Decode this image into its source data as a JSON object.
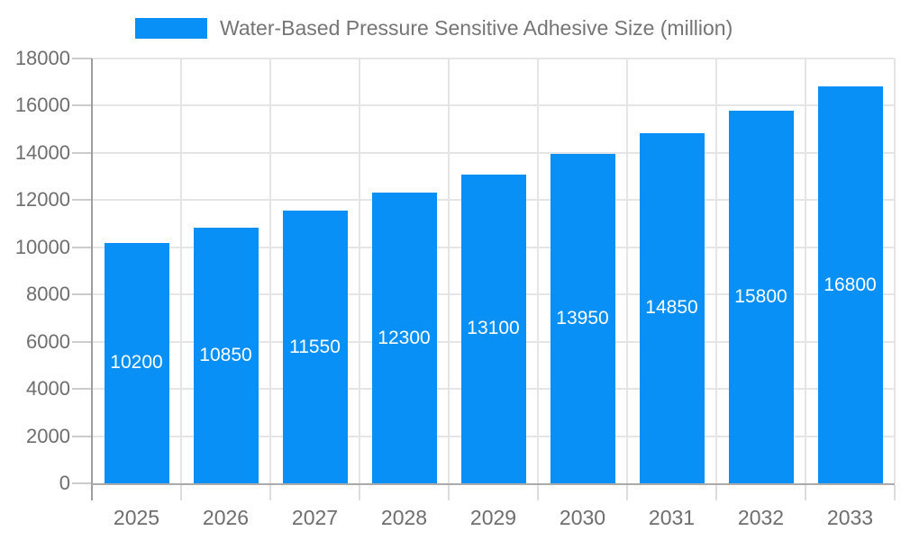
{
  "chart_data": {
    "type": "bar",
    "title": "Water-Based Pressure Sensitive Adhesive Size (million)",
    "categories": [
      "2025",
      "2026",
      "2027",
      "2028",
      "2029",
      "2030",
      "2031",
      "2032",
      "2033"
    ],
    "values": [
      10200,
      10850,
      11550,
      12300,
      13100,
      13950,
      14850,
      15800,
      16800
    ],
    "xlabel": "",
    "ylabel": "",
    "ylim": [
      0,
      18000
    ],
    "ytick_step": 2000,
    "grid": true,
    "legend_position": "top",
    "colors": {
      "bar": "#0890F7",
      "grid": "#e5e5e5",
      "axis_line": "#9e9e9e",
      "baseline": "#aaaaaa",
      "tick": "#cccccc",
      "xtick": "#dddddd",
      "axis_label": "#6e6e6e",
      "title": "#757575",
      "data_label": "#ffffff",
      "background": "#ffffff"
    }
  }
}
